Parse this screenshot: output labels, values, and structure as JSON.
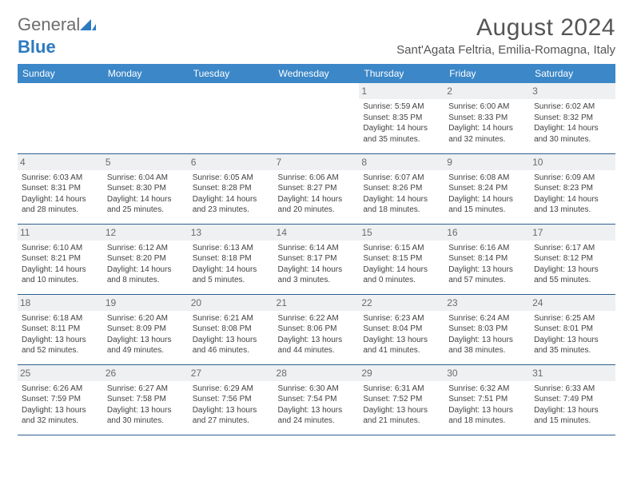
{
  "logo": {
    "text1": "General",
    "text2": "Blue"
  },
  "title": "August 2024",
  "location": "Sant'Agata Feltria, Emilia-Romagna, Italy",
  "colors": {
    "header_bg": "#3b87c8",
    "header_text": "#ffffff",
    "border": "#2f5f8f",
    "daynum_bg": "#eef0f2",
    "logo_general": "#6d6d6d",
    "logo_blue": "#2d7ac0"
  },
  "day_headers": [
    "Sunday",
    "Monday",
    "Tuesday",
    "Wednesday",
    "Thursday",
    "Friday",
    "Saturday"
  ],
  "weeks": [
    [
      null,
      null,
      null,
      null,
      {
        "n": "1",
        "sr": "5:59 AM",
        "ss": "8:35 PM",
        "dl": "14 hours and 35 minutes."
      },
      {
        "n": "2",
        "sr": "6:00 AM",
        "ss": "8:33 PM",
        "dl": "14 hours and 32 minutes."
      },
      {
        "n": "3",
        "sr": "6:02 AM",
        "ss": "8:32 PM",
        "dl": "14 hours and 30 minutes."
      }
    ],
    [
      {
        "n": "4",
        "sr": "6:03 AM",
        "ss": "8:31 PM",
        "dl": "14 hours and 28 minutes."
      },
      {
        "n": "5",
        "sr": "6:04 AM",
        "ss": "8:30 PM",
        "dl": "14 hours and 25 minutes."
      },
      {
        "n": "6",
        "sr": "6:05 AM",
        "ss": "8:28 PM",
        "dl": "14 hours and 23 minutes."
      },
      {
        "n": "7",
        "sr": "6:06 AM",
        "ss": "8:27 PM",
        "dl": "14 hours and 20 minutes."
      },
      {
        "n": "8",
        "sr": "6:07 AM",
        "ss": "8:26 PM",
        "dl": "14 hours and 18 minutes."
      },
      {
        "n": "9",
        "sr": "6:08 AM",
        "ss": "8:24 PM",
        "dl": "14 hours and 15 minutes."
      },
      {
        "n": "10",
        "sr": "6:09 AM",
        "ss": "8:23 PM",
        "dl": "14 hours and 13 minutes."
      }
    ],
    [
      {
        "n": "11",
        "sr": "6:10 AM",
        "ss": "8:21 PM",
        "dl": "14 hours and 10 minutes."
      },
      {
        "n": "12",
        "sr": "6:12 AM",
        "ss": "8:20 PM",
        "dl": "14 hours and 8 minutes."
      },
      {
        "n": "13",
        "sr": "6:13 AM",
        "ss": "8:18 PM",
        "dl": "14 hours and 5 minutes."
      },
      {
        "n": "14",
        "sr": "6:14 AM",
        "ss": "8:17 PM",
        "dl": "14 hours and 3 minutes."
      },
      {
        "n": "15",
        "sr": "6:15 AM",
        "ss": "8:15 PM",
        "dl": "14 hours and 0 minutes."
      },
      {
        "n": "16",
        "sr": "6:16 AM",
        "ss": "8:14 PM",
        "dl": "13 hours and 57 minutes."
      },
      {
        "n": "17",
        "sr": "6:17 AM",
        "ss": "8:12 PM",
        "dl": "13 hours and 55 minutes."
      }
    ],
    [
      {
        "n": "18",
        "sr": "6:18 AM",
        "ss": "8:11 PM",
        "dl": "13 hours and 52 minutes."
      },
      {
        "n": "19",
        "sr": "6:20 AM",
        "ss": "8:09 PM",
        "dl": "13 hours and 49 minutes."
      },
      {
        "n": "20",
        "sr": "6:21 AM",
        "ss": "8:08 PM",
        "dl": "13 hours and 46 minutes."
      },
      {
        "n": "21",
        "sr": "6:22 AM",
        "ss": "8:06 PM",
        "dl": "13 hours and 44 minutes."
      },
      {
        "n": "22",
        "sr": "6:23 AM",
        "ss": "8:04 PM",
        "dl": "13 hours and 41 minutes."
      },
      {
        "n": "23",
        "sr": "6:24 AM",
        "ss": "8:03 PM",
        "dl": "13 hours and 38 minutes."
      },
      {
        "n": "24",
        "sr": "6:25 AM",
        "ss": "8:01 PM",
        "dl": "13 hours and 35 minutes."
      }
    ],
    [
      {
        "n": "25",
        "sr": "6:26 AM",
        "ss": "7:59 PM",
        "dl": "13 hours and 32 minutes."
      },
      {
        "n": "26",
        "sr": "6:27 AM",
        "ss": "7:58 PM",
        "dl": "13 hours and 30 minutes."
      },
      {
        "n": "27",
        "sr": "6:29 AM",
        "ss": "7:56 PM",
        "dl": "13 hours and 27 minutes."
      },
      {
        "n": "28",
        "sr": "6:30 AM",
        "ss": "7:54 PM",
        "dl": "13 hours and 24 minutes."
      },
      {
        "n": "29",
        "sr": "6:31 AM",
        "ss": "7:52 PM",
        "dl": "13 hours and 21 minutes."
      },
      {
        "n": "30",
        "sr": "6:32 AM",
        "ss": "7:51 PM",
        "dl": "13 hours and 18 minutes."
      },
      {
        "n": "31",
        "sr": "6:33 AM",
        "ss": "7:49 PM",
        "dl": "13 hours and 15 minutes."
      }
    ]
  ],
  "labels": {
    "sunrise": "Sunrise:",
    "sunset": "Sunset:",
    "daylight": "Daylight:"
  }
}
